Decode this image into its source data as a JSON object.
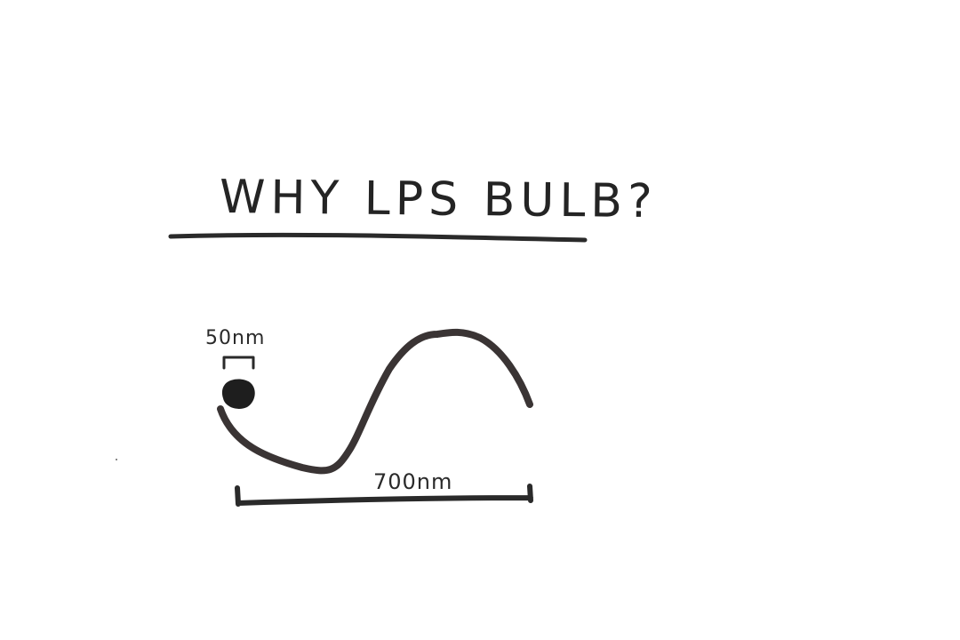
{
  "title": "WHY LPS BULB?",
  "particle": {
    "size_label": "50nm"
  },
  "wave": {
    "wavelength_label": "700nm"
  },
  "colors": {
    "ink": "#2a2a2a",
    "paper": "#ffffff"
  }
}
